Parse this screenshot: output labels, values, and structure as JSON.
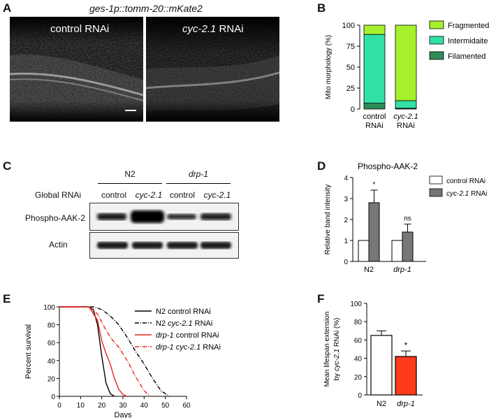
{
  "panels": {
    "A": {
      "letter": "A",
      "title": "ges-1p::tomm-20::mKate2",
      "image1_label": "control RNAi",
      "image2_label_gene": "cyc-2.1",
      "image2_label_suffix": " RNAi"
    },
    "B": {
      "letter": "B"
    },
    "C": {
      "letter": "C",
      "group1": "N2",
      "group2": "drp-1",
      "row_label": "Global RNAi",
      "lane_labels": [
        "control",
        "cyc-2.1",
        "control",
        "cyc-2.1"
      ],
      "band1_label": "Phospho-AAK-2",
      "band2_label": "Actin"
    },
    "D": {
      "letter": "D"
    },
    "E": {
      "letter": "E"
    },
    "F": {
      "letter": "F"
    }
  },
  "chart_data": [
    {
      "id": "B",
      "type": "bar",
      "stacked": true,
      "title": "",
      "ylabel": "Mito morphology (%)",
      "ylim": [
        0,
        100
      ],
      "yticks": [
        0,
        25,
        50,
        75,
        100
      ],
      "categories": [
        [
          "control",
          "RNAi"
        ],
        [
          "cyc-2.1",
          "RNAi"
        ]
      ],
      "series": [
        {
          "name": "Filamented",
          "values": [
            7,
            1
          ],
          "color": "#2e8b57"
        },
        {
          "name": "Intermidaite",
          "values": [
            82,
            9
          ],
          "color": "#33e0a6"
        },
        {
          "name": "Fragmented",
          "values": [
            11,
            90
          ],
          "color": "#a6f02c"
        }
      ],
      "legend": [
        "Fragmented",
        "Intermidaite",
        "Filamented"
      ]
    },
    {
      "id": "D",
      "type": "bar",
      "title": "Phospho-AAK-2",
      "ylabel": "Relative band intensity",
      "ylim": [
        0,
        4
      ],
      "yticks": [
        0,
        1,
        2,
        3,
        4
      ],
      "categories": [
        "N2",
        "drp-1"
      ],
      "series": [
        {
          "name": "control RNAi",
          "values": [
            1.0,
            1.0
          ],
          "errors": [
            0,
            0
          ],
          "color": "#ffffff"
        },
        {
          "name": "cyc-2.1 RNAi",
          "values": [
            2.8,
            1.4
          ],
          "errors": [
            0.6,
            0.38
          ],
          "color": "#777777"
        }
      ],
      "annotations": [
        "*",
        "ns"
      ],
      "legend": [
        {
          "gene": "",
          "text": "control RNAi"
        },
        {
          "gene": "cyc-2.1",
          "text": " RNAi"
        }
      ]
    },
    {
      "id": "E",
      "type": "line",
      "xlabel": "Days",
      "ylabel": "Percent survival",
      "xlim": [
        0,
        60
      ],
      "ylim": [
        0,
        100
      ],
      "xticks": [
        0,
        10,
        20,
        30,
        40,
        50,
        60
      ],
      "yticks": [
        0,
        20,
        40,
        60,
        80,
        100
      ],
      "series": [
        {
          "name": "N2 control RNAi",
          "color": "#000000",
          "dash": "",
          "x": [
            0,
            14,
            16,
            18,
            20,
            22,
            24,
            26
          ],
          "y": [
            100,
            100,
            97,
            80,
            45,
            15,
            3,
            0
          ]
        },
        {
          "name": "N2 cyc-2.1 RNAi",
          "color": "#000000",
          "dash": "6,2,1,2",
          "x": [
            0,
            16,
            20,
            24,
            28,
            32,
            36,
            40,
            44,
            48,
            52
          ],
          "y": [
            100,
            100,
            97,
            90,
            80,
            66,
            50,
            36,
            20,
            6,
            0
          ]
        },
        {
          "name": "drp-1 control RNAi",
          "color": "#e8241b",
          "dash": "",
          "x": [
            0,
            14,
            18,
            20,
            22,
            24,
            26,
            28,
            30,
            32
          ],
          "y": [
            100,
            100,
            85,
            62,
            48,
            36,
            20,
            8,
            2,
            0
          ]
        },
        {
          "name": "drp-1 cyc-2.1 RNAi",
          "color": "#e8241b",
          "dash": "6,2,1,2",
          "x": [
            0,
            14,
            18,
            22,
            25,
            28,
            32,
            36,
            40,
            43
          ],
          "y": [
            100,
            100,
            92,
            74,
            63,
            55,
            40,
            22,
            6,
            0
          ]
        }
      ],
      "legend": [
        {
          "pre": "N2 control RNAi",
          "gene": "",
          "post": ""
        },
        {
          "pre": "N2 ",
          "gene": "cyc-2.1",
          "post": " RNAi"
        },
        {
          "pre": "",
          "gene": "drp-1",
          "post": " control RNAi"
        },
        {
          "pre": "",
          "gene": "drp-1 cyc-2.1",
          "post": " RNAi"
        }
      ]
    },
    {
      "id": "F",
      "type": "bar",
      "ylabel_pre": "Mean lifespan extension",
      "ylabel_mid": "by ",
      "ylabel_gene": "cyc-2.1",
      "ylabel_post": " RNAi (%)",
      "ylim": [
        0,
        100
      ],
      "yticks": [
        0,
        20,
        40,
        60,
        80,
        100
      ],
      "categories": [
        "N2",
        "drp-1"
      ],
      "values": [
        65,
        42
      ],
      "errors": [
        5,
        6
      ],
      "colors": [
        "#ffffff",
        "#ff3b1c"
      ],
      "annotations": [
        "",
        "*"
      ]
    }
  ]
}
